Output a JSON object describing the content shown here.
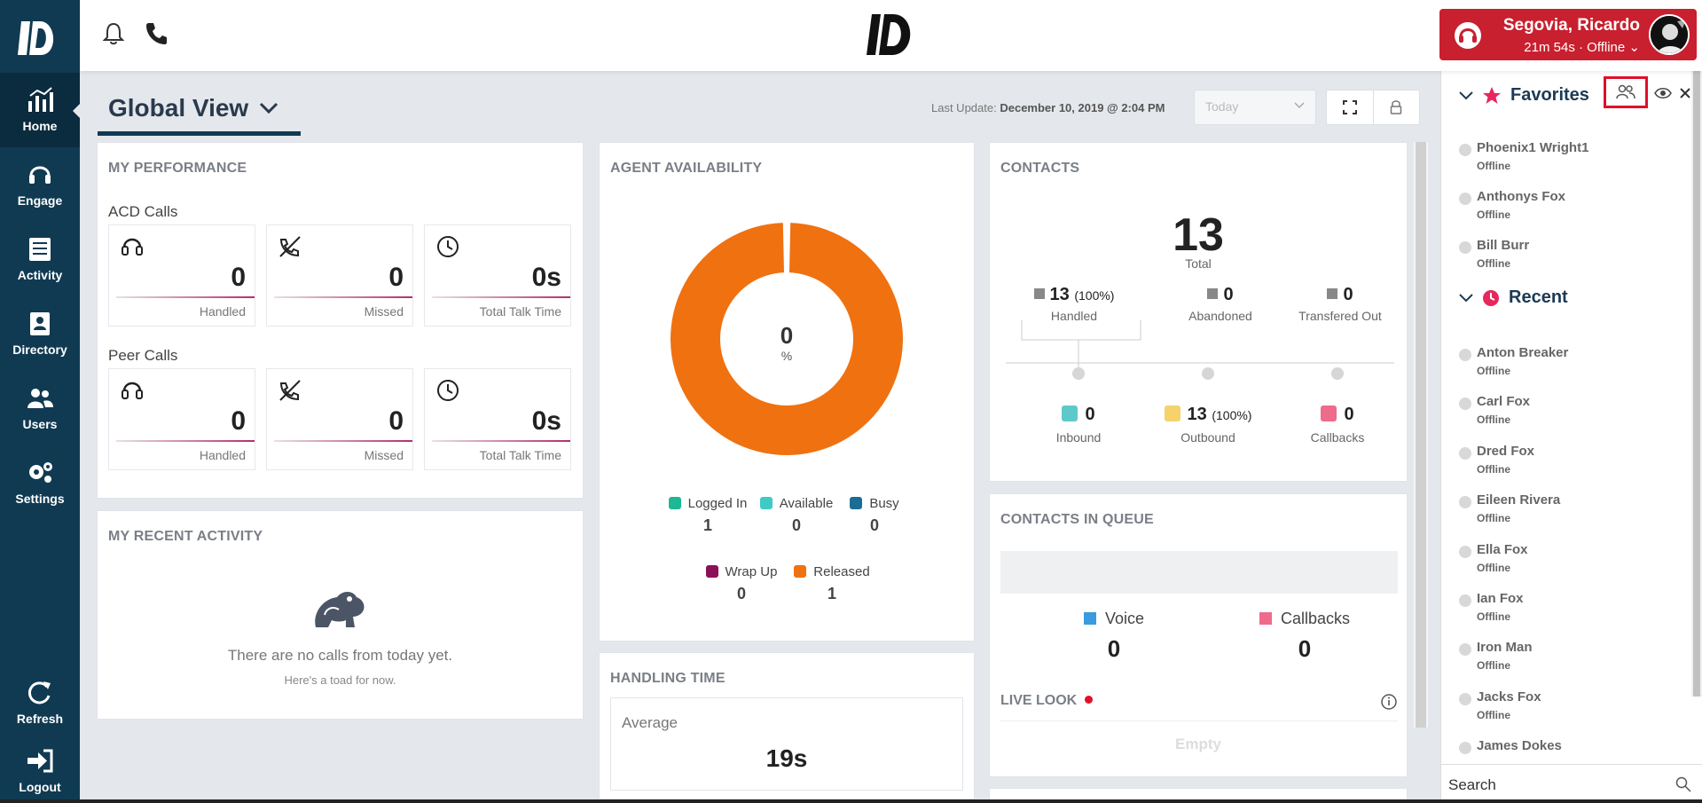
{
  "sidebar": {
    "items": [
      {
        "label": "Home",
        "icon": "chart-icon"
      },
      {
        "label": "Engage",
        "icon": "headset-icon"
      },
      {
        "label": "Activity",
        "icon": "list-icon"
      },
      {
        "label": "Directory",
        "icon": "directory-icon"
      },
      {
        "label": "Users",
        "icon": "users-icon"
      },
      {
        "label": "Settings",
        "icon": "gears-icon"
      }
    ],
    "refresh_label": "Refresh",
    "logout_label": "Logout"
  },
  "header": {
    "user_name": "Segovia, Ricardo",
    "user_status": "21m 54s · Offline",
    "colors": {
      "brand": "#103a52",
      "user_box": "#c8202f"
    }
  },
  "page": {
    "title": "Global View",
    "last_update_label": "Last Update:",
    "last_update_value": "December 10, 2019 @ 2:04 PM",
    "range_select": "Today"
  },
  "performance": {
    "title": "MY PERFORMANCE",
    "acd_label": "ACD Calls",
    "peer_label": "Peer Calls",
    "acd": [
      {
        "value": "0",
        "label": "Handled"
      },
      {
        "value": "0",
        "label": "Missed"
      },
      {
        "value": "0s",
        "label": "Total Talk Time"
      }
    ],
    "peer": [
      {
        "value": "0",
        "label": "Handled"
      },
      {
        "value": "0",
        "label": "Missed"
      },
      {
        "value": "0s",
        "label": "Total Talk Time"
      }
    ]
  },
  "recent_activity": {
    "title": "MY RECENT ACTIVITY",
    "empty_text": "There are no calls from today yet.",
    "empty_sub": "Here's a toad for now."
  },
  "agent_availability": {
    "title": "AGENT AVAILABILITY",
    "center_value": "0",
    "center_unit": "%",
    "legend": [
      {
        "label": "Logged In",
        "value": "1",
        "color": "#1db894"
      },
      {
        "label": "Available",
        "value": "0",
        "color": "#3fcac6"
      },
      {
        "label": "Busy",
        "value": "0",
        "color": "#1a6e95"
      },
      {
        "label": "Wrap Up",
        "value": "0",
        "color": "#8a1058"
      },
      {
        "label": "Released",
        "value": "1",
        "color": "#f07110"
      }
    ]
  },
  "handling_time": {
    "title": "HANDLING TIME",
    "average_label": "Average",
    "average_value": "19s"
  },
  "contacts": {
    "title": "CONTACTS",
    "total": "13",
    "total_label": "Total",
    "handled": "13",
    "handled_pct": "(100%)",
    "handled_label": "Handled",
    "abandoned": "0",
    "abandoned_label": "Abandoned",
    "transferred": "0",
    "transferred_label": "Transfered Out",
    "inbound": "0",
    "inbound_label": "Inbound",
    "outbound": "13",
    "outbound_pct": "(100%)",
    "outbound_label": "Outbound",
    "callbacks": "0",
    "callbacks_label": "Callbacks",
    "colors": {
      "inbound": "#5ec9c9",
      "outbound": "#f5d26a",
      "callbacks": "#ef6b8b"
    }
  },
  "queue": {
    "title": "CONTACTS IN QUEUE",
    "voice_label": "Voice",
    "voice_value": "0",
    "callbacks_label": "Callbacks",
    "callbacks_value": "0",
    "live_look_label": "LIVE LOOK",
    "live_look_empty": "Empty",
    "colors": {
      "voice": "#3a9be0",
      "callbacks": "#ef6b8b"
    }
  },
  "right_panel": {
    "favorites_label": "Favorites",
    "recent_label": "Recent",
    "favorites": [
      {
        "name": "Phoenix1 Wright1",
        "status": "Offline"
      },
      {
        "name": "Anthonys Fox",
        "status": "Offline"
      },
      {
        "name": "Bill Burr",
        "status": "Offline"
      }
    ],
    "recent": [
      {
        "name": "Anton Breaker",
        "status": "Offline"
      },
      {
        "name": "Carl Fox",
        "status": "Offline"
      },
      {
        "name": "Dred Fox",
        "status": "Offline"
      },
      {
        "name": "Eileen Rivera",
        "status": "Offline"
      },
      {
        "name": "Ella Fox",
        "status": "Offline"
      },
      {
        "name": "Ian Fox",
        "status": "Offline"
      },
      {
        "name": "Iron Man",
        "status": "Offline"
      },
      {
        "name": "Jacks Fox",
        "status": "Offline"
      },
      {
        "name": "James Dokes",
        "status": ""
      }
    ],
    "search_placeholder": "Search"
  }
}
